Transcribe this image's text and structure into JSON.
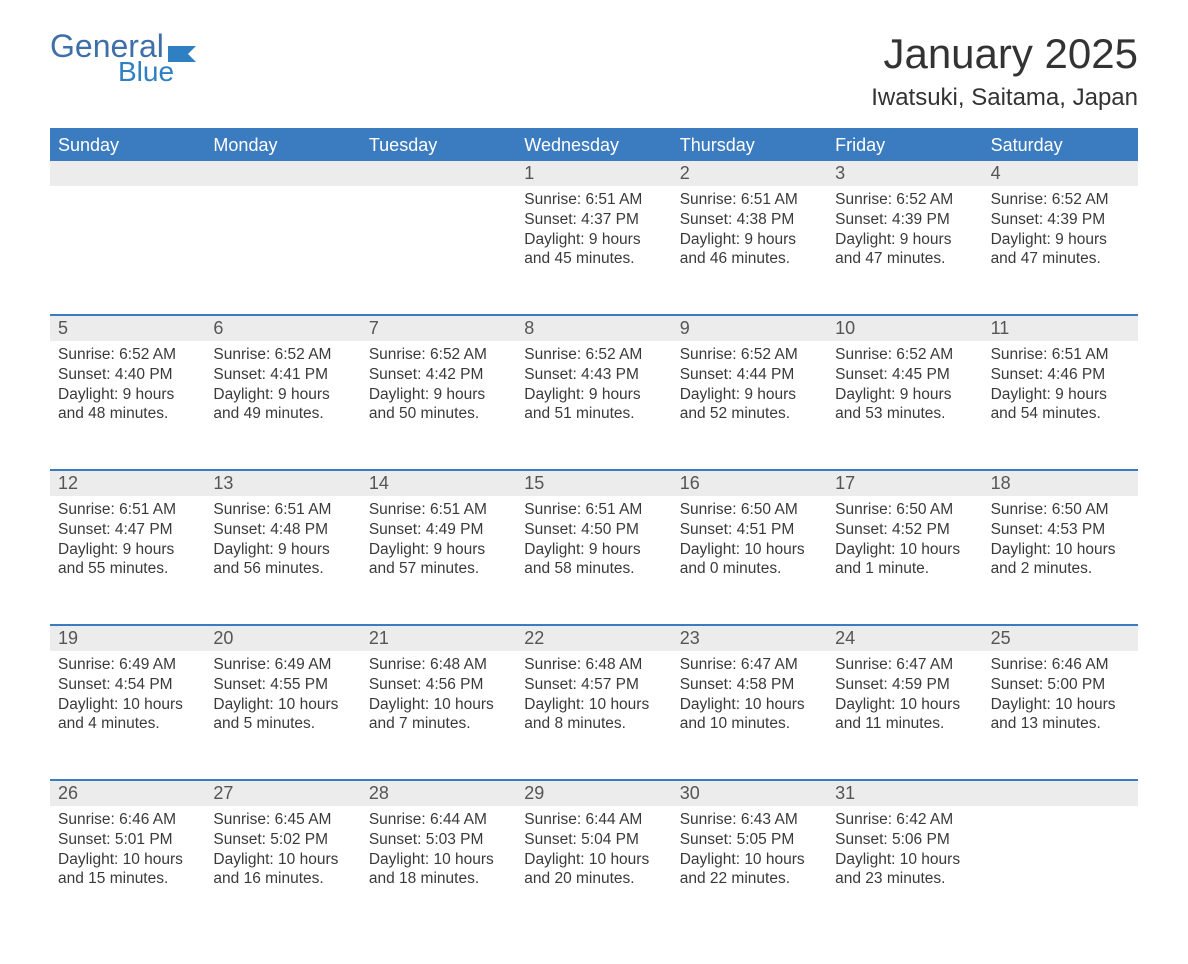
{
  "brand": {
    "word1": "General",
    "word2": "Blue"
  },
  "colors": {
    "accent": "#3b7bbf",
    "logo1": "#3f6fa8",
    "logo2": "#2f80c3",
    "strip": "#ececec",
    "text": "#3a3a3a",
    "bg": "#ffffff"
  },
  "title": "January 2025",
  "subtitle": "Iwatsuki, Saitama, Japan",
  "weekdays": [
    "Sunday",
    "Monday",
    "Tuesday",
    "Wednesday",
    "Thursday",
    "Friday",
    "Saturday"
  ],
  "weeks": [
    {
      "nums": [
        "",
        "",
        "",
        "1",
        "2",
        "3",
        "4"
      ],
      "cells": [
        null,
        null,
        null,
        {
          "sunrise": "Sunrise: 6:51 AM",
          "sunset": "Sunset: 4:37 PM",
          "daylight": "Daylight: 9 hours and 45 minutes."
        },
        {
          "sunrise": "Sunrise: 6:51 AM",
          "sunset": "Sunset: 4:38 PM",
          "daylight": "Daylight: 9 hours and 46 minutes."
        },
        {
          "sunrise": "Sunrise: 6:52 AM",
          "sunset": "Sunset: 4:39 PM",
          "daylight": "Daylight: 9 hours and 47 minutes."
        },
        {
          "sunrise": "Sunrise: 6:52 AM",
          "sunset": "Sunset: 4:39 PM",
          "daylight": "Daylight: 9 hours and 47 minutes."
        }
      ]
    },
    {
      "nums": [
        "5",
        "6",
        "7",
        "8",
        "9",
        "10",
        "11"
      ],
      "cells": [
        {
          "sunrise": "Sunrise: 6:52 AM",
          "sunset": "Sunset: 4:40 PM",
          "daylight": "Daylight: 9 hours and 48 minutes."
        },
        {
          "sunrise": "Sunrise: 6:52 AM",
          "sunset": "Sunset: 4:41 PM",
          "daylight": "Daylight: 9 hours and 49 minutes."
        },
        {
          "sunrise": "Sunrise: 6:52 AM",
          "sunset": "Sunset: 4:42 PM",
          "daylight": "Daylight: 9 hours and 50 minutes."
        },
        {
          "sunrise": "Sunrise: 6:52 AM",
          "sunset": "Sunset: 4:43 PM",
          "daylight": "Daylight: 9 hours and 51 minutes."
        },
        {
          "sunrise": "Sunrise: 6:52 AM",
          "sunset": "Sunset: 4:44 PM",
          "daylight": "Daylight: 9 hours and 52 minutes."
        },
        {
          "sunrise": "Sunrise: 6:52 AM",
          "sunset": "Sunset: 4:45 PM",
          "daylight": "Daylight: 9 hours and 53 minutes."
        },
        {
          "sunrise": "Sunrise: 6:51 AM",
          "sunset": "Sunset: 4:46 PM",
          "daylight": "Daylight: 9 hours and 54 minutes."
        }
      ]
    },
    {
      "nums": [
        "12",
        "13",
        "14",
        "15",
        "16",
        "17",
        "18"
      ],
      "cells": [
        {
          "sunrise": "Sunrise: 6:51 AM",
          "sunset": "Sunset: 4:47 PM",
          "daylight": "Daylight: 9 hours and 55 minutes."
        },
        {
          "sunrise": "Sunrise: 6:51 AM",
          "sunset": "Sunset: 4:48 PM",
          "daylight": "Daylight: 9 hours and 56 minutes."
        },
        {
          "sunrise": "Sunrise: 6:51 AM",
          "sunset": "Sunset: 4:49 PM",
          "daylight": "Daylight: 9 hours and 57 minutes."
        },
        {
          "sunrise": "Sunrise: 6:51 AM",
          "sunset": "Sunset: 4:50 PM",
          "daylight": "Daylight: 9 hours and 58 minutes."
        },
        {
          "sunrise": "Sunrise: 6:50 AM",
          "sunset": "Sunset: 4:51 PM",
          "daylight": "Daylight: 10 hours and 0 minutes."
        },
        {
          "sunrise": "Sunrise: 6:50 AM",
          "sunset": "Sunset: 4:52 PM",
          "daylight": "Daylight: 10 hours and 1 minute."
        },
        {
          "sunrise": "Sunrise: 6:50 AM",
          "sunset": "Sunset: 4:53 PM",
          "daylight": "Daylight: 10 hours and 2 minutes."
        }
      ]
    },
    {
      "nums": [
        "19",
        "20",
        "21",
        "22",
        "23",
        "24",
        "25"
      ],
      "cells": [
        {
          "sunrise": "Sunrise: 6:49 AM",
          "sunset": "Sunset: 4:54 PM",
          "daylight": "Daylight: 10 hours and 4 minutes."
        },
        {
          "sunrise": "Sunrise: 6:49 AM",
          "sunset": "Sunset: 4:55 PM",
          "daylight": "Daylight: 10 hours and 5 minutes."
        },
        {
          "sunrise": "Sunrise: 6:48 AM",
          "sunset": "Sunset: 4:56 PM",
          "daylight": "Daylight: 10 hours and 7 minutes."
        },
        {
          "sunrise": "Sunrise: 6:48 AM",
          "sunset": "Sunset: 4:57 PM",
          "daylight": "Daylight: 10 hours and 8 minutes."
        },
        {
          "sunrise": "Sunrise: 6:47 AM",
          "sunset": "Sunset: 4:58 PM",
          "daylight": "Daylight: 10 hours and 10 minutes."
        },
        {
          "sunrise": "Sunrise: 6:47 AM",
          "sunset": "Sunset: 4:59 PM",
          "daylight": "Daylight: 10 hours and 11 minutes."
        },
        {
          "sunrise": "Sunrise: 6:46 AM",
          "sunset": "Sunset: 5:00 PM",
          "daylight": "Daylight: 10 hours and 13 minutes."
        }
      ]
    },
    {
      "nums": [
        "26",
        "27",
        "28",
        "29",
        "30",
        "31",
        ""
      ],
      "cells": [
        {
          "sunrise": "Sunrise: 6:46 AM",
          "sunset": "Sunset: 5:01 PM",
          "daylight": "Daylight: 10 hours and 15 minutes."
        },
        {
          "sunrise": "Sunrise: 6:45 AM",
          "sunset": "Sunset: 5:02 PM",
          "daylight": "Daylight: 10 hours and 16 minutes."
        },
        {
          "sunrise": "Sunrise: 6:44 AM",
          "sunset": "Sunset: 5:03 PM",
          "daylight": "Daylight: 10 hours and 18 minutes."
        },
        {
          "sunrise": "Sunrise: 6:44 AM",
          "sunset": "Sunset: 5:04 PM",
          "daylight": "Daylight: 10 hours and 20 minutes."
        },
        {
          "sunrise": "Sunrise: 6:43 AM",
          "sunset": "Sunset: 5:05 PM",
          "daylight": "Daylight: 10 hours and 22 minutes."
        },
        {
          "sunrise": "Sunrise: 6:42 AM",
          "sunset": "Sunset: 5:06 PM",
          "daylight": "Daylight: 10 hours and 23 minutes."
        },
        null
      ]
    }
  ]
}
